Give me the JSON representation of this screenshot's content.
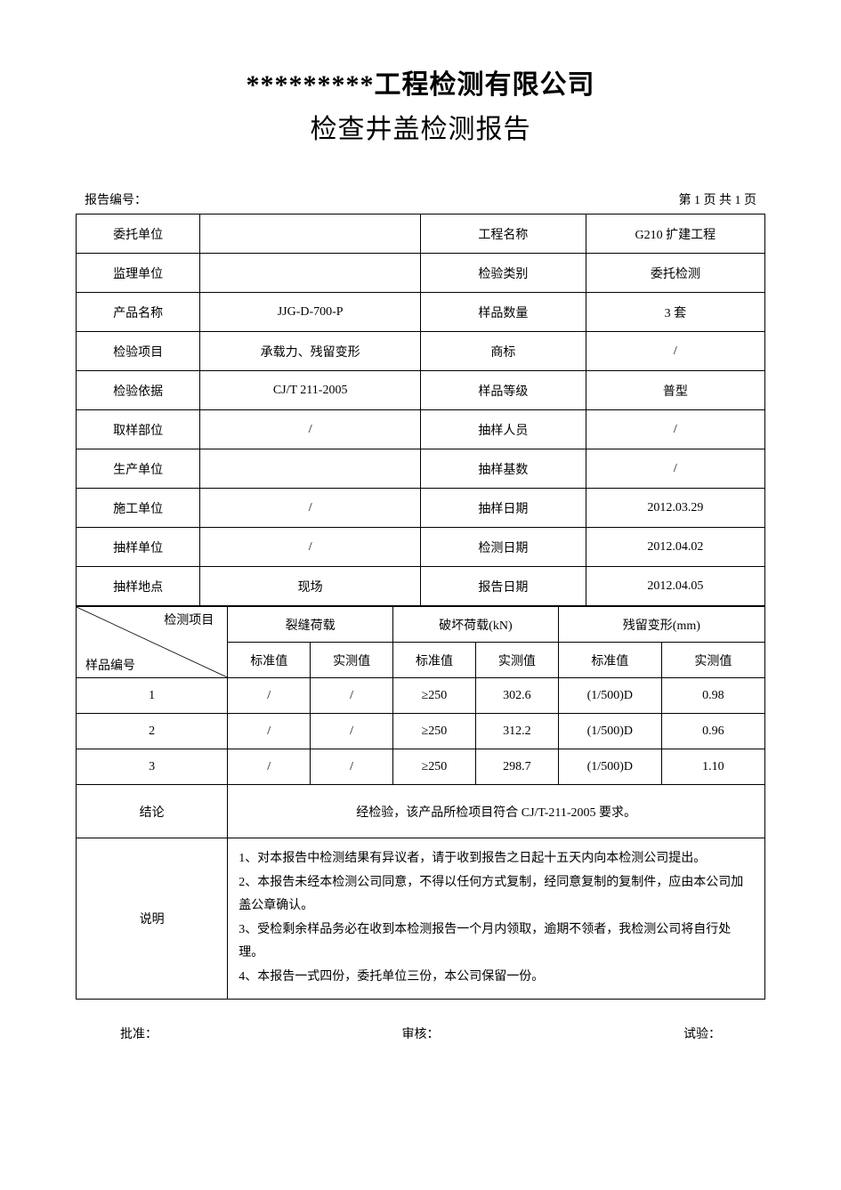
{
  "title": {
    "line1": "*********工程检测有限公司",
    "line2": "检查井盖检测报告"
  },
  "header": {
    "report_no_label": "报告编号：",
    "page_label": "第 1 页  共 1 页"
  },
  "info_rows": [
    {
      "l1": "委托单位",
      "v1": "",
      "l2": "工程名称",
      "v2": "G210 扩建工程"
    },
    {
      "l1": "监理单位",
      "v1": "",
      "l2": "检验类别",
      "v2": "委托检测"
    },
    {
      "l1": "产品名称",
      "v1": "JJG-D-700-P",
      "l2": "样品数量",
      "v2": "3 套"
    },
    {
      "l1": "检验项目",
      "v1": "承载力、残留变形",
      "l2": "商标",
      "v2": "/"
    },
    {
      "l1": "检验依据",
      "v1": "CJ/T 211-2005",
      "l2": "样品等级",
      "v2": "普型"
    },
    {
      "l1": "取样部位",
      "v1": "/",
      "l2": "抽样人员",
      "v2": "/"
    },
    {
      "l1": "生产单位",
      "v1": "",
      "l2": "抽样基数",
      "v2": "/"
    },
    {
      "l1": "施工单位",
      "v1": "/",
      "l2": "抽样日期",
      "v2": "2012.03.29"
    },
    {
      "l1": "抽样单位",
      "v1": "/",
      "l2": "检测日期",
      "v2": "2012.04.02"
    },
    {
      "l1": "抽样地点",
      "v1": "现场",
      "l2": "报告日期",
      "v2": "2012.04.05"
    }
  ],
  "data_table": {
    "diag_top": "检测项目",
    "diag_bottom": "样品编号",
    "group_headers": [
      "裂缝荷载",
      "破坏荷载(kN)",
      "残留变形(mm)"
    ],
    "sub_headers": [
      "标准值",
      "实测值",
      "标准值",
      "实测值",
      "标准值",
      "实测值"
    ],
    "rows": [
      {
        "id": "1",
        "cells": [
          "/",
          "/",
          "≥250",
          "302.6",
          "(1/500)D",
          "0.98"
        ]
      },
      {
        "id": "2",
        "cells": [
          "/",
          "/",
          "≥250",
          "312.2",
          "(1/500)D",
          "0.96"
        ]
      },
      {
        "id": "3",
        "cells": [
          "/",
          "/",
          "≥250",
          "298.7",
          "(1/500)D",
          "1.10"
        ]
      }
    ]
  },
  "conclusion": {
    "label": "结论",
    "text": "经检验，该产品所检项目符合 CJ/T-211-2005 要求。"
  },
  "notes": {
    "label": "说明",
    "lines": [
      "1、对本报告中检测结果有异议者，请于收到报告之日起十五天内向本检测公司提出。",
      "2、本报告未经本检测公司同意，不得以任何方式复制，经同意复制的复制件，应由本公司加盖公章确认。",
      "3、受检剩余样品务必在收到本检测报告一个月内领取，逾期不领者，我检测公司将自行处理。",
      "4、本报告一式四份，委托单位三份，本公司保留一份。"
    ]
  },
  "signatures": {
    "s1": "批准：",
    "s2": "审核：",
    "s3": "试验："
  },
  "style": {
    "border_color": "#000000",
    "bg_color": "#ffffff",
    "title_fontsize": 30,
    "body_fontsize": 14
  }
}
